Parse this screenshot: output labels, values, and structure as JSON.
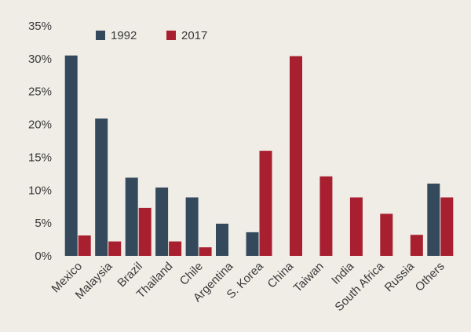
{
  "chart_data": {
    "type": "bar",
    "title": "",
    "xlabel": "",
    "ylabel": "",
    "ylim": [
      0,
      35
    ],
    "y_ticks": [
      "0%",
      "5%",
      "10%",
      "15%",
      "20%",
      "25%",
      "30%",
      "35%"
    ],
    "grid": false,
    "legend_position": "top-left",
    "categories": [
      "Mexico",
      "Malaysia",
      "Brazil",
      "Thailand",
      "Chile",
      "Argentina",
      "S. Korea",
      "China",
      "Taiwan",
      "India",
      "South Africa",
      "Russia",
      "Others"
    ],
    "series": [
      {
        "name": "1992",
        "color": "#344a5c",
        "values": [
          30.5,
          20.9,
          11.9,
          10.4,
          8.9,
          4.9,
          3.6,
          0,
          0,
          0,
          0,
          0,
          11.0
        ]
      },
      {
        "name": "2017",
        "color": "#a81f30",
        "values": [
          3.1,
          2.2,
          7.3,
          2.2,
          1.3,
          0,
          16.0,
          30.4,
          12.1,
          8.9,
          6.4,
          3.2,
          8.9
        ]
      }
    ]
  }
}
